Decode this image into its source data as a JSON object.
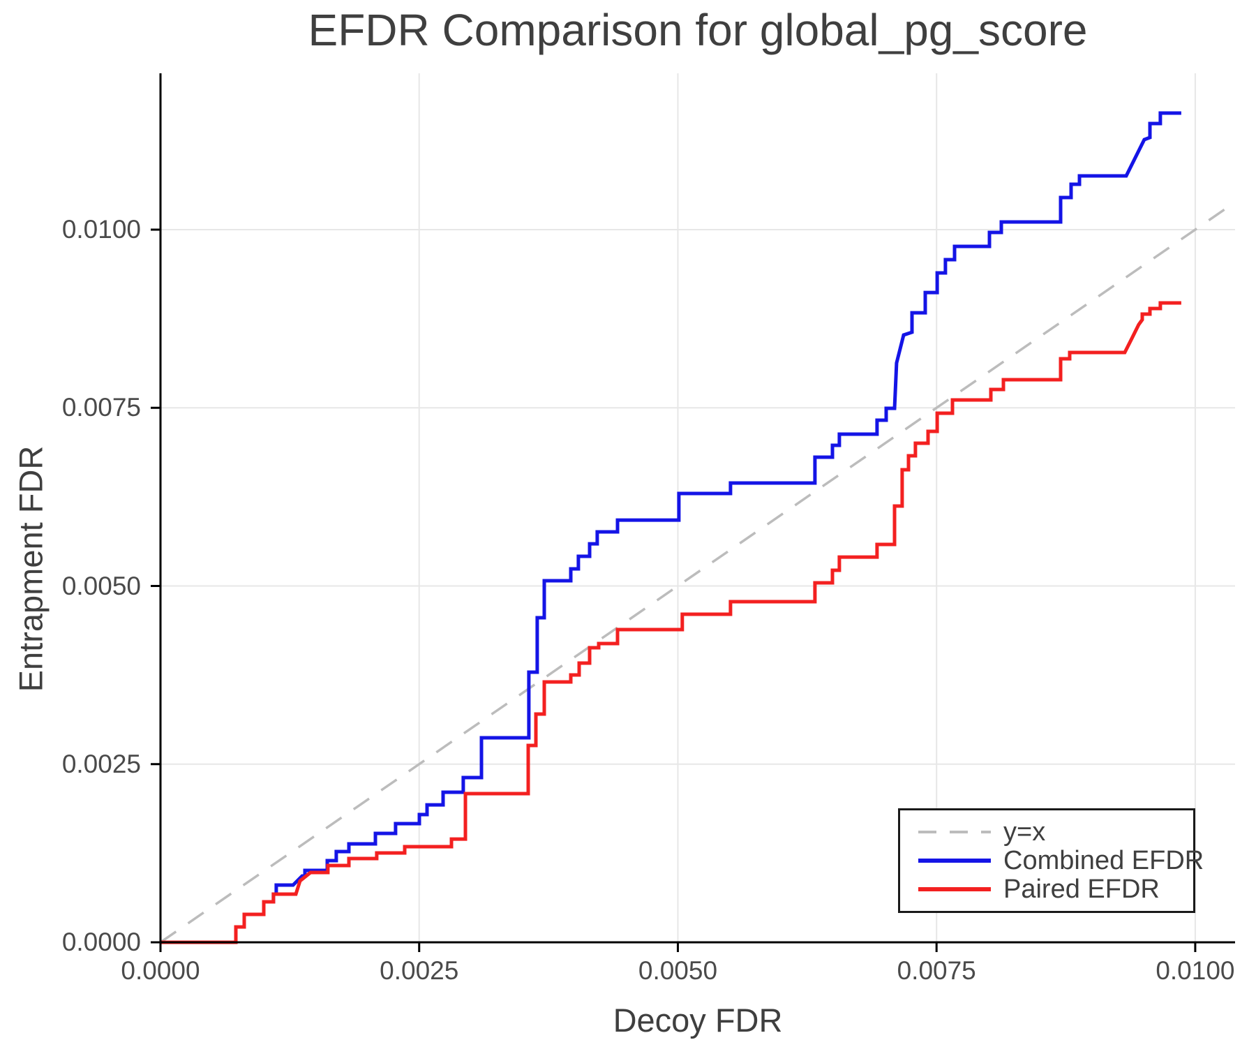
{
  "chart_data": {
    "type": "line",
    "title": "EFDR Comparison for global_pg_score",
    "xlabel": "Decoy FDR",
    "ylabel": "Entrapment FDR",
    "grid": true,
    "legend_position": "lower right",
    "xlim": [
      0,
      0.010385
    ],
    "ylim": [
      0,
      0.012194
    ],
    "x_ticks": {
      "values": [
        0,
        0.0025,
        0.005,
        0.0075,
        0.01
      ],
      "labels": [
        "0.0000",
        "0.0025",
        "0.0050",
        "0.0075",
        "0.0100"
      ]
    },
    "y_ticks": {
      "values": [
        0,
        0.0025,
        0.005,
        0.0075,
        0.01
      ],
      "labels": [
        "0.0000",
        "0.0025",
        "0.0050",
        "0.0075",
        "0.0100"
      ]
    },
    "colors": {
      "identity_line": "#bcbcbc",
      "combined": "#1414e6",
      "paired": "#f32020",
      "grid": "#e7e7e7",
      "spine": "#000000",
      "text": "#3f3f3f",
      "tick_text": "#4a4a4a"
    },
    "series": [
      {
        "name": "y=x",
        "style": "dashed",
        "color": "#bcbcbc",
        "width": 3.5,
        "points": [
          [
            0,
            0
          ],
          [
            0.010385,
            0.010385
          ]
        ]
      },
      {
        "name": "Combined EFDR",
        "style": "solid",
        "color": "#1414e6",
        "width": 5,
        "points": [
          [
            0,
            0
          ],
          [
            0.000728,
            0
          ],
          [
            0.000728,
            0.000215
          ],
          [
            0.000809,
            0.000215
          ],
          [
            0.000809,
            0.000392
          ],
          [
            0.000998,
            0.000392
          ],
          [
            0.000998,
            0.000568
          ],
          [
            0.001092,
            0.000568
          ],
          [
            0.001092,
            0.000676
          ],
          [
            0.001119,
            0.000676
          ],
          [
            0.001119,
            0.000803
          ],
          [
            0.001281,
            0.000803
          ],
          [
            0.001369,
            0.00093
          ],
          [
            0.001396,
            0.00093
          ],
          [
            0.001396,
            0.001009
          ],
          [
            0.001612,
            0.001009
          ],
          [
            0.001612,
            0.001146
          ],
          [
            0.001699,
            0.001146
          ],
          [
            0.001699,
            0.001273
          ],
          [
            0.001821,
            0.001273
          ],
          [
            0.001821,
            0.001381
          ],
          [
            0.002077,
            0.001381
          ],
          [
            0.002077,
            0.001528
          ],
          [
            0.002272,
            0.001528
          ],
          [
            0.002272,
            0.001665
          ],
          [
            0.002502,
            0.001665
          ],
          [
            0.002502,
            0.001792
          ],
          [
            0.002576,
            0.001792
          ],
          [
            0.002576,
            0.001929
          ],
          [
            0.002731,
            0.001929
          ],
          [
            0.002731,
            0.002106
          ],
          [
            0.002926,
            0.002106
          ],
          [
            0.002926,
            0.002311
          ],
          [
            0.003102,
            0.002311
          ],
          [
            0.003102,
            0.00287
          ],
          [
            0.00356,
            0.00287
          ],
          [
            0.00356,
            0.00379
          ],
          [
            0.003641,
            0.00379
          ],
          [
            0.003641,
            0.004554
          ],
          [
            0.003709,
            0.004554
          ],
          [
            0.003709,
            0.005073
          ],
          [
            0.003965,
            0.005073
          ],
          [
            0.003965,
            0.00524
          ],
          [
            0.004039,
            0.00524
          ],
          [
            0.004039,
            0.005416
          ],
          [
            0.004147,
            0.005416
          ],
          [
            0.004147,
            0.005592
          ],
          [
            0.004221,
            0.005592
          ],
          [
            0.004221,
            0.005759
          ],
          [
            0.004417,
            0.005759
          ],
          [
            0.004417,
            0.005925
          ],
          [
            0.00501,
            0.005925
          ],
          [
            0.00501,
            0.006298
          ],
          [
            0.005509,
            0.006298
          ],
          [
            0.005509,
            0.006445
          ],
          [
            0.006325,
            0.006445
          ],
          [
            0.006325,
            0.006807
          ],
          [
            0.006494,
            0.006807
          ],
          [
            0.006494,
            0.006974
          ],
          [
            0.006561,
            0.006974
          ],
          [
            0.006561,
            0.00713
          ],
          [
            0.006925,
            0.00713
          ],
          [
            0.006925,
            0.007326
          ],
          [
            0.007013,
            0.007326
          ],
          [
            0.007013,
            0.007493
          ],
          [
            0.007094,
            0.007493
          ],
          [
            0.007114,
            0.008129
          ],
          [
            0.007182,
            0.008521
          ],
          [
            0.007263,
            0.00856
          ],
          [
            0.007263,
            0.008834
          ],
          [
            0.007391,
            0.008834
          ],
          [
            0.007391,
            0.009118
          ],
          [
            0.007506,
            0.009118
          ],
          [
            0.007506,
            0.009393
          ],
          [
            0.007586,
            0.009393
          ],
          [
            0.007586,
            0.009579
          ],
          [
            0.007674,
            0.009579
          ],
          [
            0.007674,
            0.009765
          ],
          [
            0.008011,
            0.009765
          ],
          [
            0.008011,
            0.009961
          ],
          [
            0.008126,
            0.009961
          ],
          [
            0.008126,
            0.010108
          ],
          [
            0.008699,
            0.010108
          ],
          [
            0.008699,
            0.010451
          ],
          [
            0.0088,
            0.010451
          ],
          [
            0.0088,
            0.010637
          ],
          [
            0.008881,
            0.010637
          ],
          [
            0.008881,
            0.010754
          ],
          [
            0.009333,
            0.010754
          ],
          [
            0.009508,
            0.011264
          ],
          [
            0.009562,
            0.011293
          ],
          [
            0.009562,
            0.011489
          ],
          [
            0.009663,
            0.011489
          ],
          [
            0.009663,
            0.011636
          ],
          [
            0.009865,
            0.011636
          ]
        ]
      },
      {
        "name": "Paired EFDR",
        "style": "solid",
        "color": "#f32020",
        "width": 5,
        "points": [
          [
            0,
            0
          ],
          [
            0.000728,
            0
          ],
          [
            0.000728,
            0.000215
          ],
          [
            0.000809,
            0.000215
          ],
          [
            0.000809,
            0.000392
          ],
          [
            0.000998,
            0.000392
          ],
          [
            0.000998,
            0.000568
          ],
          [
            0.001092,
            0.000568
          ],
          [
            0.001092,
            0.000676
          ],
          [
            0.001308,
            0.000676
          ],
          [
            0.001349,
            0.000862
          ],
          [
            0.00145,
            0.000979
          ],
          [
            0.001618,
            0.000979
          ],
          [
            0.001618,
            0.001077
          ],
          [
            0.001821,
            0.001077
          ],
          [
            0.001821,
            0.001175
          ],
          [
            0.00209,
            0.001175
          ],
          [
            0.00209,
            0.001254
          ],
          [
            0.00236,
            0.001254
          ],
          [
            0.00236,
            0.001342
          ],
          [
            0.002812,
            0.001342
          ],
          [
            0.002812,
            0.001449
          ],
          [
            0.002947,
            0.001449
          ],
          [
            0.002947,
            0.002086
          ],
          [
            0.003554,
            0.002086
          ],
          [
            0.003554,
            0.002762
          ],
          [
            0.003628,
            0.002762
          ],
          [
            0.003628,
            0.003203
          ],
          [
            0.003709,
            0.003203
          ],
          [
            0.003709,
            0.003653
          ],
          [
            0.003965,
            0.003653
          ],
          [
            0.003965,
            0.003751
          ],
          [
            0.004046,
            0.003751
          ],
          [
            0.004046,
            0.003918
          ],
          [
            0.004147,
            0.003918
          ],
          [
            0.004147,
            0.004133
          ],
          [
            0.004235,
            0.004133
          ],
          [
            0.004235,
            0.004192
          ],
          [
            0.004417,
            0.004192
          ],
          [
            0.004417,
            0.004388
          ],
          [
            0.005043,
            0.004388
          ],
          [
            0.005043,
            0.004603
          ],
          [
            0.005509,
            0.004603
          ],
          [
            0.005509,
            0.00478
          ],
          [
            0.006325,
            0.00478
          ],
          [
            0.006325,
            0.005044
          ],
          [
            0.006494,
            0.005044
          ],
          [
            0.006494,
            0.00522
          ],
          [
            0.006561,
            0.00522
          ],
          [
            0.006561,
            0.005406
          ],
          [
            0.006925,
            0.005406
          ],
          [
            0.006925,
            0.005583
          ],
          [
            0.007094,
            0.005583
          ],
          [
            0.007094,
            0.006121
          ],
          [
            0.007168,
            0.006121
          ],
          [
            0.007168,
            0.006631
          ],
          [
            0.007229,
            0.006631
          ],
          [
            0.007229,
            0.006827
          ],
          [
            0.007296,
            0.006827
          ],
          [
            0.007296,
            0.007003
          ],
          [
            0.007418,
            0.007003
          ],
          [
            0.007418,
            0.007169
          ],
          [
            0.007506,
            0.007169
          ],
          [
            0.007506,
            0.007424
          ],
          [
            0.007654,
            0.007424
          ],
          [
            0.007654,
            0.00761
          ],
          [
            0.008025,
            0.00761
          ],
          [
            0.008025,
            0.007757
          ],
          [
            0.008146,
            0.007757
          ],
          [
            0.008146,
            0.007894
          ],
          [
            0.008699,
            0.007894
          ],
          [
            0.008699,
            0.008188
          ],
          [
            0.008787,
            0.008188
          ],
          [
            0.008787,
            0.008276
          ],
          [
            0.009319,
            0.008276
          ],
          [
            0.009387,
            0.008472
          ],
          [
            0.009454,
            0.008668
          ],
          [
            0.009488,
            0.008737
          ],
          [
            0.009488,
            0.008815
          ],
          [
            0.009562,
            0.008815
          ],
          [
            0.009562,
            0.008893
          ],
          [
            0.009663,
            0.008893
          ],
          [
            0.009663,
            0.008972
          ],
          [
            0.009865,
            0.008972
          ]
        ]
      }
    ]
  },
  "legend": {
    "items": [
      {
        "label": "y=x"
      },
      {
        "label": "Combined EFDR"
      },
      {
        "label": "Paired EFDR"
      }
    ]
  }
}
